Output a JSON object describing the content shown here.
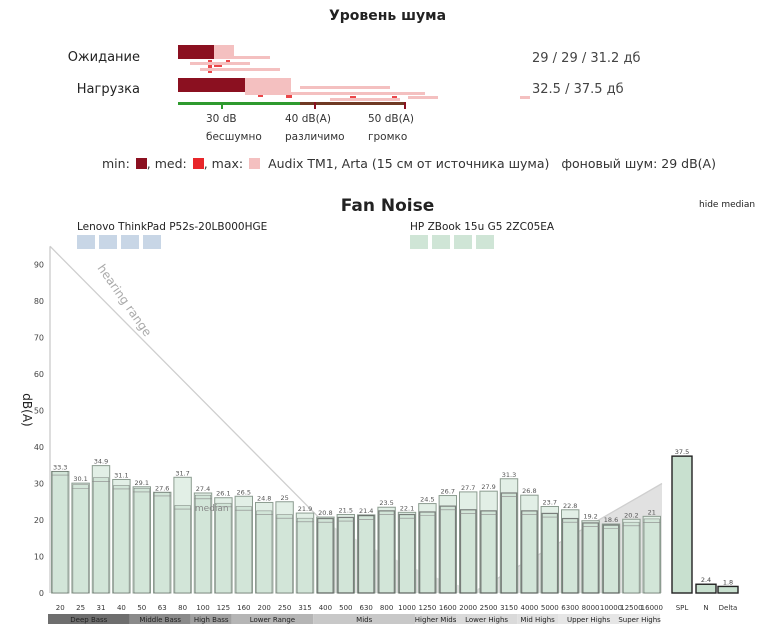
{
  "noise_panel": {
    "title": "Уровень шума",
    "rows": [
      {
        "label": "Ожидание",
        "value": "29 / 29 / 31.2 дб",
        "min": 29,
        "med": 29,
        "max": 31.2
      },
      {
        "label": "Нагрузка",
        "value": "32.5 / 37.5 дб",
        "min": 32.5,
        "max": 37.5
      }
    ],
    "scale": [
      {
        "db": "30 dB",
        "desc": "бесшумно"
      },
      {
        "db": "40 dB(A)",
        "desc": "различимо"
      },
      {
        "db": "50 dB(A)",
        "desc": "громко"
      }
    ],
    "legend": {
      "min_label": "min:",
      "med_label": ", med:",
      "max_label": ", max:",
      "source": "Audix TM1, Arta (15 см от источника шума)",
      "background": "фоновый шум: 29 dB(A)"
    },
    "colors": {
      "min": "#8b1020",
      "med": "#e8262a",
      "max": "#f4c0c0",
      "green": "#2e9a2e"
    }
  },
  "fan_chart": {
    "title": "Fan Noise",
    "hide_median": "hide median",
    "ylabel": "dB(A)",
    "hearing_range_label": "hearing range",
    "median_label": "median",
    "device_a": "Lenovo ThinkPad P52s-20LB000HGE",
    "device_b": "HP ZBook 15u G5 2ZC05EA"
  },
  "chart_data": {
    "type": "bar",
    "title": "Fan Noise",
    "ylabel": "dB(A)",
    "ylim": [
      0,
      95
    ],
    "yticks": [
      0,
      10,
      20,
      30,
      40,
      50,
      60,
      70,
      80,
      90
    ],
    "categories": [
      "20",
      "25",
      "31",
      "40",
      "50",
      "63",
      "80",
      "100",
      "125",
      "160",
      "200",
      "250",
      "315",
      "400",
      "500",
      "630",
      "800",
      "1000",
      "1250",
      "1600",
      "2000",
      "2500",
      "3150",
      "4000",
      "5000",
      "6300",
      "8000",
      "10000",
      "12500",
      "16000"
    ],
    "series": [
      {
        "name": "HP ZBook 15u G5 2ZC05EA",
        "values": [
          33.3,
          30.1,
          34.9,
          31.1,
          29.1,
          27.6,
          31.7,
          27.4,
          26.1,
          26.5,
          24.8,
          25,
          21.9,
          20.8,
          21.5,
          21.4,
          23.5,
          22.1,
          24.5,
          26.7,
          27.7,
          27.9,
          31.3,
          26.8,
          23.7,
          22.8,
          19.2,
          18.6,
          20.2,
          21
        ]
      },
      {
        "name": "Lenovo ThinkPad P52s-20LB000HGE",
        "values": [
          33.3,
          29.7,
          31.6,
          29.5,
          28.7,
          27.6,
          24,
          26.8,
          24.6,
          23.7,
          22.5,
          21.5,
          20.5,
          20.4,
          20.7,
          21.2,
          22.5,
          21.5,
          22.2,
          23.8,
          22.8,
          22.5,
          27.4,
          22.5,
          21.8,
          20.4,
          19.8,
          18.9,
          19.4,
          20.3
        ]
      }
    ],
    "printed_labels": [
      33.3,
      30.1,
      34.9,
      31.1,
      29.1,
      27.6,
      31.7,
      27.4,
      26.1,
      26.5,
      24.8,
      25,
      21.9,
      20.8,
      21.5,
      21.4,
      23.5,
      22.1,
      24.5,
      26.7,
      27.7,
      27.9,
      31.3,
      26.8,
      23.7,
      22.8,
      19.2,
      18.6,
      20.2,
      21
    ],
    "summary_categories": [
      "SPL",
      "N",
      "Delta"
    ],
    "summary_values": [
      37.5,
      2.4,
      1.8
    ],
    "bands": [
      {
        "name": "Deep Bass",
        "from": 0,
        "to": 4
      },
      {
        "name": "Middle Bass",
        "from": 4,
        "to": 7
      },
      {
        "name": "High Bass",
        "from": 7,
        "to": 9
      },
      {
        "name": "Lower Range",
        "from": 9,
        "to": 13
      },
      {
        "name": "Mids",
        "from": 13,
        "to": 18
      },
      {
        "name": "Higher Mids",
        "from": 18,
        "to": 20
      },
      {
        "name": "Lower Highs",
        "from": 20,
        "to": 23
      },
      {
        "name": "Mid Highs",
        "from": 23,
        "to": 25
      },
      {
        "name": "Upper Highs",
        "from": 25,
        "to": 28
      },
      {
        "name": "Super Highs",
        "from": 28,
        "to": 30
      }
    ],
    "band_colors": [
      "#6e6e6e",
      "#8a8a8a",
      "#a0a0a0",
      "#b5b5b5",
      "#c8c8c8",
      "#d2d2d2",
      "#dadada",
      "#e0e0e0",
      "#e6e6e6",
      "#ebebeb"
    ],
    "colors": {
      "bar_fill": "#e2efe6",
      "bar_fill_dark": "#c8e0cf",
      "device_a_swatch": "#c8d6e6",
      "device_b_swatch": "#cfe5d6",
      "hearing_fill": "#c8c8c8"
    }
  }
}
